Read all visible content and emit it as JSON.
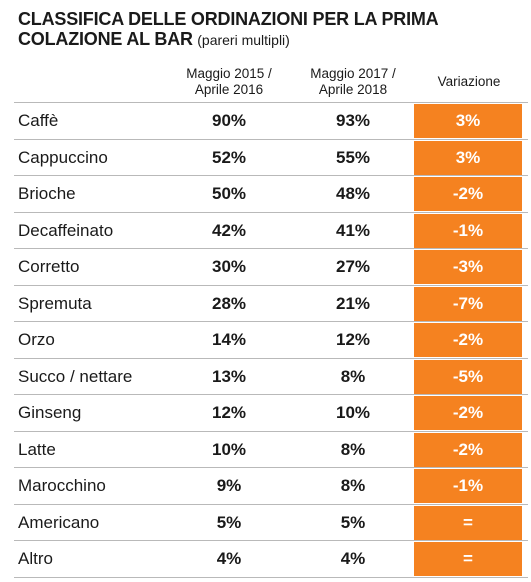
{
  "chart_data": {
    "type": "table",
    "title_line1": "CLASSIFICA DELLE ORDINAZIONI PER LA PRIMA",
    "title_line2": "COLAZIONE AL BAR",
    "subtitle": "(pareri multipli)",
    "columns": {
      "period1": [
        "Maggio 2015 /",
        "Aprile 2016"
      ],
      "period2": [
        "Maggio 2017 /",
        "Aprile 2018"
      ],
      "variation": "Variazione"
    },
    "rows": [
      {
        "label": "Caffè",
        "p1": "90%",
        "p2": "93%",
        "var": "3%"
      },
      {
        "label": "Cappuccino",
        "p1": "52%",
        "p2": "55%",
        "var": "3%"
      },
      {
        "label": "Brioche",
        "p1": "50%",
        "p2": "48%",
        "var": "-2%"
      },
      {
        "label": "Decaffeinato",
        "p1": "42%",
        "p2": "41%",
        "var": "-1%"
      },
      {
        "label": "Corretto",
        "p1": "30%",
        "p2": "27%",
        "var": "-3%"
      },
      {
        "label": "Spremuta",
        "p1": "28%",
        "p2": "21%",
        "var": "-7%"
      },
      {
        "label": "Orzo",
        "p1": "14%",
        "p2": "12%",
        "var": "-2%"
      },
      {
        "label": "Succo / nettare",
        "p1": "13%",
        "p2": "8%",
        "var": "-5%"
      },
      {
        "label": "Ginseng",
        "p1": "12%",
        "p2": "10%",
        "var": "-2%"
      },
      {
        "label": "Latte",
        "p1": "10%",
        "p2": "8%",
        "var": "-2%"
      },
      {
        "label": "Marocchino",
        "p1": "9%",
        "p2": "8%",
        "var": "-1%"
      },
      {
        "label": "Americano",
        "p1": "5%",
        "p2": "5%",
        "var": "="
      },
      {
        "label": "Altro",
        "p1": "4%",
        "p2": "4%",
        "var": "="
      }
    ],
    "colors": {
      "accent": "#f58220",
      "rule": "#b9b9b9",
      "text": "#1a1a1a"
    }
  }
}
